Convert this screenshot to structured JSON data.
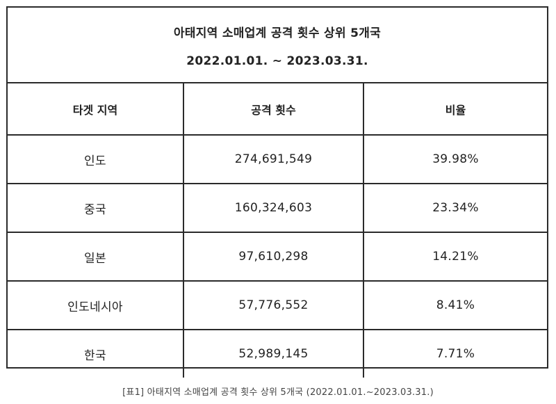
{
  "table": {
    "title": "아태지역 소매업계 공격 횟수 상위 5개국",
    "period": "2022.01.01. ~ 2023.03.31.",
    "headers": [
      "타겟 지역",
      "공격 횟수",
      "비율"
    ],
    "rows": [
      {
        "region": "인도",
        "attacks": "274,691,549",
        "ratio": "39.98%"
      },
      {
        "region": "중국",
        "attacks": "160,324,603",
        "ratio": "23.34%"
      },
      {
        "region": "일본",
        "attacks": "97,610,298",
        "ratio": "14.21%"
      },
      {
        "region": "인도네시아",
        "attacks": "57,776,552",
        "ratio": "8.41%"
      },
      {
        "region": "한국",
        "attacks": "52,989,145",
        "ratio": "7.71%"
      }
    ]
  },
  "caption": "[표1] 아태지역 소매업계 공격 횟수 상위 5개국 (2022.01.01.~2023.03.31.)"
}
